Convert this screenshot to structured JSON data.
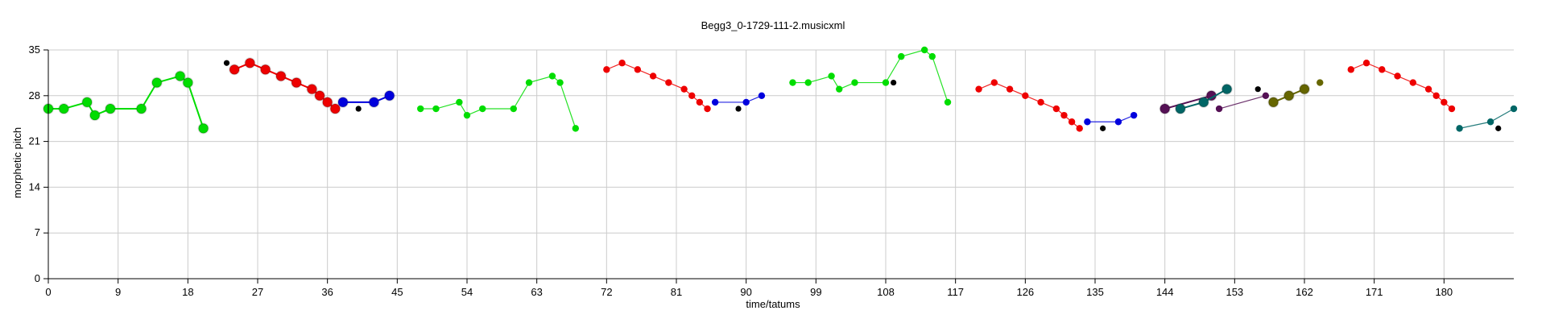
{
  "chart_data": {
    "type": "scatter",
    "title": "Begg3_0-1729-111-2.musicxml",
    "xlabel": "time/tatums",
    "ylabel": "morphetic pitch",
    "xlim": [
      0,
      189
    ],
    "ylim": [
      0,
      35
    ],
    "xticks": [
      0,
      9,
      18,
      27,
      36,
      45,
      54,
      63,
      72,
      81,
      90,
      99,
      108,
      117,
      126,
      135,
      144,
      153,
      162,
      171,
      180
    ],
    "yticks": [
      0,
      7,
      14,
      21,
      28,
      35
    ],
    "grid": true,
    "colors": {
      "green": "#00dd00",
      "red": "#ee0000",
      "blue": "#0000dd",
      "black": "#000000",
      "teal": "#006666",
      "purple": "#551155",
      "olive": "#666600"
    },
    "series": [
      {
        "color": "green",
        "marker": "large",
        "points": [
          [
            0,
            26
          ],
          [
            2,
            26
          ],
          [
            5,
            27
          ],
          [
            6,
            25
          ],
          [
            8,
            26
          ],
          [
            12,
            26
          ],
          [
            14,
            30
          ],
          [
            17,
            31
          ],
          [
            18,
            30
          ],
          [
            20,
            23
          ]
        ]
      },
      {
        "color": "red",
        "marker": "large",
        "points": [
          [
            24,
            32
          ],
          [
            26,
            33
          ],
          [
            28,
            32
          ],
          [
            30,
            31
          ],
          [
            32,
            30
          ],
          [
            34,
            29
          ],
          [
            35,
            28
          ],
          [
            36,
            27
          ],
          [
            37,
            26
          ]
        ]
      },
      {
        "color": "blue",
        "marker": "large",
        "points": [
          [
            38,
            27
          ],
          [
            42,
            27
          ],
          [
            44,
            28
          ]
        ]
      },
      {
        "color": "green",
        "marker": "small",
        "points": [
          [
            48,
            26
          ],
          [
            50,
            26
          ],
          [
            53,
            27
          ],
          [
            54,
            25
          ],
          [
            56,
            26
          ],
          [
            60,
            26
          ],
          [
            62,
            30
          ],
          [
            65,
            31
          ],
          [
            66,
            30
          ],
          [
            68,
            23
          ]
        ]
      },
      {
        "color": "red",
        "marker": "small",
        "points": [
          [
            72,
            32
          ],
          [
            74,
            33
          ],
          [
            76,
            32
          ],
          [
            78,
            31
          ],
          [
            80,
            30
          ],
          [
            82,
            29
          ],
          [
            83,
            28
          ],
          [
            84,
            27
          ],
          [
            85,
            26
          ]
        ]
      },
      {
        "color": "blue",
        "marker": "small",
        "points": [
          [
            86,
            27
          ],
          [
            90,
            27
          ],
          [
            92,
            28
          ]
        ]
      },
      {
        "color": "green",
        "marker": "small",
        "points": [
          [
            96,
            30
          ],
          [
            98,
            30
          ],
          [
            101,
            31
          ],
          [
            102,
            29
          ],
          [
            104,
            30
          ],
          [
            108,
            30
          ],
          [
            110,
            34
          ],
          [
            113,
            35
          ],
          [
            114,
            34
          ],
          [
            116,
            27
          ]
        ]
      },
      {
        "color": "red",
        "marker": "small",
        "points": [
          [
            120,
            29
          ],
          [
            122,
            30
          ],
          [
            124,
            29
          ],
          [
            126,
            28
          ],
          [
            128,
            27
          ],
          [
            130,
            26
          ],
          [
            131,
            25
          ],
          [
            132,
            24
          ],
          [
            133,
            23
          ]
        ]
      },
      {
        "color": "blue",
        "marker": "small",
        "points": [
          [
            134,
            24
          ],
          [
            138,
            24
          ],
          [
            140,
            25
          ]
        ]
      },
      {
        "color": "purple",
        "marker": "large",
        "points": [
          [
            144,
            26
          ],
          [
            150,
            28
          ]
        ]
      },
      {
        "color": "teal",
        "marker": "large",
        "points": [
          [
            146,
            26
          ],
          [
            149,
            27
          ],
          [
            152,
            29
          ]
        ]
      },
      {
        "color": "purple",
        "marker": "small",
        "points": [
          [
            151,
            26
          ],
          [
            157,
            28
          ]
        ]
      },
      {
        "color": "olive",
        "marker": "large",
        "points": [
          [
            158,
            27
          ],
          [
            160,
            28
          ],
          [
            162,
            29
          ]
        ]
      },
      {
        "color": "olive",
        "marker": "small",
        "points": [
          [
            164,
            30
          ]
        ]
      },
      {
        "color": "red",
        "marker": "small",
        "points": [
          [
            168,
            32
          ],
          [
            170,
            33
          ],
          [
            172,
            32
          ],
          [
            174,
            31
          ],
          [
            176,
            30
          ],
          [
            178,
            29
          ],
          [
            179,
            28
          ],
          [
            180,
            27
          ],
          [
            181,
            26
          ]
        ]
      },
      {
        "color": "teal",
        "marker": "small",
        "points": [
          [
            182,
            23
          ],
          [
            186,
            24
          ],
          [
            189,
            26
          ]
        ]
      }
    ],
    "isolated_points": [
      {
        "color": "black",
        "points": [
          [
            23,
            33
          ],
          [
            40,
            26
          ],
          [
            89,
            26
          ],
          [
            109,
            30
          ],
          [
            136,
            23
          ],
          [
            156,
            29
          ],
          [
            187,
            23
          ]
        ]
      }
    ]
  }
}
